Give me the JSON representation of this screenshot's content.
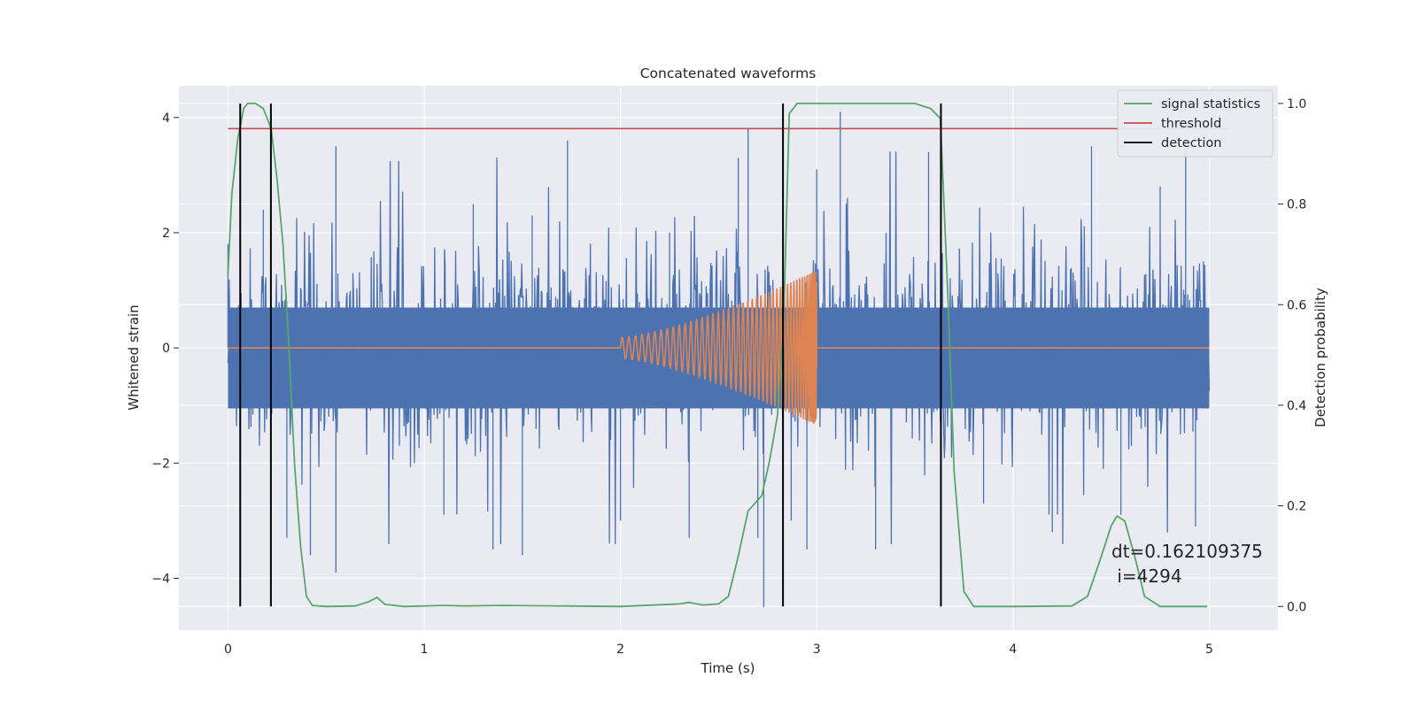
{
  "chart_data": {
    "type": "line",
    "title": "Concatenated waveforms",
    "xlabel": "Time (s)",
    "ylabel": "Whitened strain",
    "y2label": "Detection probability",
    "xlim": [
      -0.25,
      5.35
    ],
    "ylim": [
      -4.9,
      4.55
    ],
    "y2lim": [
      -0.047,
      1.035
    ],
    "xticks": [
      0,
      1,
      2,
      3,
      4,
      5
    ],
    "xtick_labels": [
      "0",
      "1",
      "2",
      "3",
      "4",
      "5"
    ],
    "yticks": [
      -4,
      -2,
      0,
      2,
      4
    ],
    "ytick_labels": [
      "−4",
      "−2",
      "0",
      "2",
      "4"
    ],
    "y2ticks": [
      0.0,
      0.2,
      0.4,
      0.6,
      0.8,
      1.0
    ],
    "y2tick_labels": [
      "0.0",
      "0.2",
      "0.4",
      "0.6",
      "0.8",
      "1.0"
    ],
    "grid": true,
    "legend_position": "top-right",
    "annotation": [
      "dt=0.162109375",
      " i=4294"
    ],
    "noise": {
      "color": "#4c72b0",
      "axis": "left",
      "x_range": [
        0,
        5
      ],
      "band": [
        -1.05,
        0.7
      ],
      "peaks": [
        [
          0.55,
          3.5
        ],
        [
          0.55,
          -3.9
        ],
        [
          0.42,
          -3.6
        ],
        [
          0.3,
          -3.3
        ],
        [
          0.18,
          2.4
        ],
        [
          0.0,
          1.8
        ],
        [
          1.1,
          -2.9
        ],
        [
          1.25,
          2.5
        ],
        [
          1.35,
          -3.5
        ],
        [
          1.5,
          -3.6
        ],
        [
          1.73,
          3.6
        ],
        [
          1.55,
          2.3
        ],
        [
          2.0,
          -3.0
        ],
        [
          2.25,
          2.0
        ],
        [
          2.35,
          -3.3
        ],
        [
          2.6,
          3.3
        ],
        [
          2.65,
          3.8
        ],
        [
          2.7,
          -3.3
        ],
        [
          2.73,
          -4.5
        ],
        [
          2.87,
          -3.0
        ],
        [
          2.95,
          -3.5
        ],
        [
          3.0,
          3.1
        ],
        [
          3.12,
          4.1
        ],
        [
          3.3,
          -3.5
        ],
        [
          3.57,
          3.4
        ],
        [
          3.85,
          -2.7
        ],
        [
          4.2,
          -3.2
        ],
        [
          4.4,
          3.5
        ],
        [
          4.55,
          -2.9
        ],
        [
          4.75,
          2.8
        ],
        [
          4.88,
          3.6
        ],
        [
          4.93,
          -3.1
        ],
        [
          4.97,
          1.5
        ]
      ]
    },
    "injected_waveform": {
      "color": "#dd8452",
      "axis": "left",
      "x_range": [
        0,
        5
      ],
      "chirp_start": 2.0,
      "chirp_end": 3.0,
      "start_amplitude": 0.18,
      "end_amplitude": 1.35
    },
    "series": [
      {
        "name": "signal statistics",
        "color": "#55a868",
        "axis": "right",
        "x": [
          0,
          0.02,
          0.05,
          0.08,
          0.1,
          0.14,
          0.18,
          0.22,
          0.25,
          0.28,
          0.31,
          0.34,
          0.37,
          0.4,
          0.43,
          0.5,
          0.65,
          0.72,
          0.76,
          0.8,
          0.9,
          1.1,
          1.2,
          1.4,
          2.0,
          2.3,
          2.35,
          2.42,
          2.5,
          2.55,
          2.6,
          2.65,
          2.72,
          2.76,
          2.8,
          2.83,
          2.86,
          2.9,
          3.5,
          3.58,
          3.63,
          3.67,
          3.7,
          3.75,
          3.8,
          4.0,
          4.3,
          4.38,
          4.45,
          4.5,
          4.53,
          4.57,
          4.62,
          4.67,
          4.75,
          4.99
        ],
        "y": [
          0.66,
          0.82,
          0.93,
          0.99,
          1.0,
          1.0,
          0.99,
          0.95,
          0.85,
          0.72,
          0.52,
          0.28,
          0.12,
          0.02,
          0.002,
          0.0,
          0.001,
          0.01,
          0.018,
          0.004,
          0.0,
          0.002,
          0.001,
          0.002,
          0.0,
          0.005,
          0.008,
          0.003,
          0.005,
          0.02,
          0.1,
          0.19,
          0.22,
          0.29,
          0.38,
          0.55,
          0.98,
          1.0,
          1.0,
          0.99,
          0.97,
          0.6,
          0.27,
          0.03,
          0.0,
          0.0,
          0.001,
          0.02,
          0.1,
          0.16,
          0.18,
          0.17,
          0.1,
          0.02,
          0.0,
          0.0
        ]
      },
      {
        "name": "threshold",
        "color": "#c44e52",
        "axis": "right",
        "x": [
          0,
          5.1
        ],
        "y": [
          0.95,
          0.95
        ]
      },
      {
        "name": "detection",
        "color": "#000000",
        "axis": "right",
        "x": [
          0.0625,
          0.2188,
          2.8281,
          3.6328
        ],
        "y_range": [
          0.0,
          1.0
        ]
      }
    ]
  }
}
